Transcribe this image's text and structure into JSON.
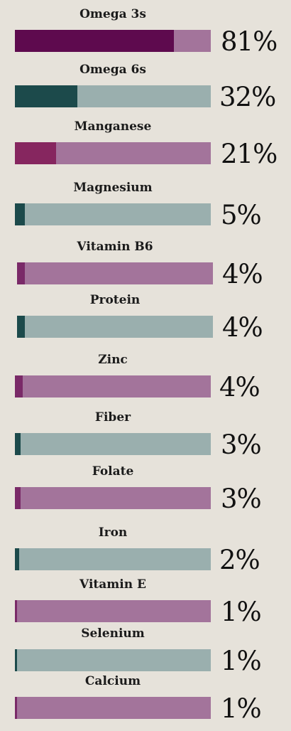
{
  "chart_data": {
    "type": "bar",
    "orientation": "horizontal",
    "categories": [
      "Omega 3s",
      "Omega 6s",
      "Manganese",
      "Magnesium",
      "Vitamin B6",
      "Protein",
      "Zinc",
      "Fiber",
      "Folate",
      "Iron",
      "Vitamin E",
      "Selenium",
      "Calcium"
    ],
    "values": [
      81,
      32,
      21,
      5,
      4,
      4,
      4,
      3,
      3,
      2,
      1,
      1,
      1
    ],
    "value_labels": [
      "81%",
      "32%",
      "21%",
      "5%",
      "4%",
      "4%",
      "4%",
      "3%",
      "3%",
      "2%",
      "1%",
      "1%",
      "1%"
    ],
    "xlim": [
      0,
      100
    ],
    "grid": false,
    "legend": "none",
    "colors": {
      "background": "#e6e2da",
      "purple_fill": [
        "#5e0a4e",
        "#86265f",
        "#7a2a68"
      ],
      "purple_track": "#a3749b",
      "teal_fill": "#1c4a4b",
      "teal_track": "#9aafae"
    },
    "bar_color_pattern": [
      "purple",
      "teal",
      "purple",
      "teal",
      "purple",
      "teal",
      "purple",
      "teal",
      "purple",
      "teal",
      "purple",
      "teal",
      "purple"
    ]
  }
}
